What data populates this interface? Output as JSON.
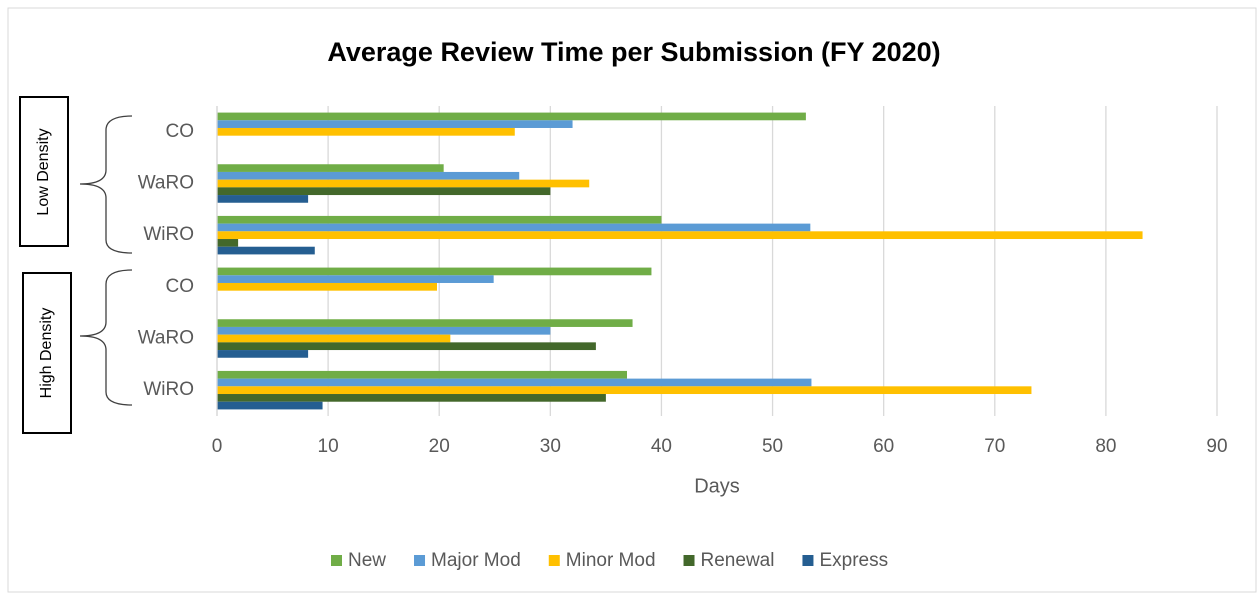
{
  "chart_data": {
    "type": "hbar",
    "title": "Average Review Time per Submission (FY 2020)",
    "groups": [
      "Low Density",
      "High Density"
    ],
    "categories": [
      "CO",
      "WaRO",
      "WiRO",
      "CO",
      "WaRO",
      "WiRO"
    ],
    "series": [
      {
        "name": "New",
        "color": "#70ad47",
        "values": [
          53,
          20.4,
          40,
          39.1,
          37.4,
          36.9
        ]
      },
      {
        "name": "Major Mod",
        "color": "#5b9bd5",
        "values": [
          32,
          27.2,
          53.4,
          24.9,
          30,
          53.5
        ]
      },
      {
        "name": "Minor Mod",
        "color": "#ffc000",
        "values": [
          26.8,
          33.5,
          83.3,
          19.8,
          21,
          73.3
        ]
      },
      {
        "name": "Renewal",
        "color": "#43682b",
        "values": [
          null,
          30,
          1.9,
          null,
          34.1,
          35
        ]
      },
      {
        "name": "Express",
        "color": "#255e91",
        "values": [
          null,
          8.2,
          8.8,
          null,
          8.2,
          9.5
        ]
      }
    ],
    "xlabel": "Days",
    "xlim": [
      0,
      90
    ],
    "xticks": [
      0,
      10,
      20,
      30,
      40,
      50,
      60,
      70,
      80,
      90
    ],
    "grid": true,
    "legend": "bottom"
  }
}
